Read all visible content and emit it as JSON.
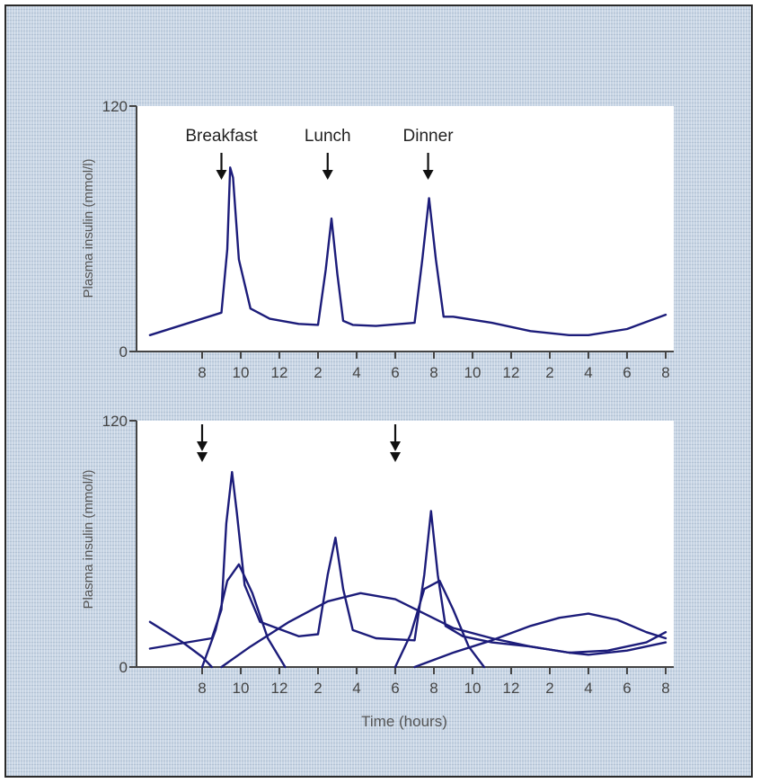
{
  "chart_data": [
    {
      "type": "line",
      "ylabel": "Plasma insulin (mmol/l)",
      "xlabel": "",
      "ylim": [
        0,
        120
      ],
      "yticks": [
        0,
        120
      ],
      "xlim": [
        5,
        32
      ],
      "x_tick_values": [
        8,
        10,
        12,
        14,
        16,
        18,
        20,
        22,
        24,
        26,
        28,
        30,
        32
      ],
      "x_tick_labels": [
        "8",
        "10",
        "12",
        "2",
        "4",
        "6",
        "8",
        "10",
        "12",
        "2",
        "4",
        "6",
        "8"
      ],
      "annotations": [
        {
          "label": "Breakfast",
          "x": 9.0,
          "arrows": 1
        },
        {
          "label": "Lunch",
          "x": 14.5,
          "arrows": 1
        },
        {
          "label": "Dinner",
          "x": 19.7,
          "arrows": 1
        }
      ],
      "series": [
        {
          "x": [
            5.3,
            9.0,
            9.3,
            9.45,
            9.6,
            9.9,
            10.5,
            11.5,
            13,
            14.0,
            14.4,
            14.7,
            15.0,
            15.3,
            15.8,
            17,
            19.0,
            19.4,
            19.75,
            20.1,
            20.5,
            21,
            23,
            25,
            27,
            28,
            30,
            32
          ],
          "y": [
            8,
            19,
            50,
            90,
            85,
            45,
            21,
            16,
            13.5,
            13,
            40,
            65,
            38,
            15,
            13,
            12.5,
            14,
            45,
            75,
            45,
            17,
            17,
            14,
            10,
            8,
            8,
            11,
            18
          ]
        }
      ]
    },
    {
      "type": "line",
      "xlabel": "Time (hours)",
      "ylabel": "Plasma insulin (mmol/l)",
      "ylim": [
        0,
        120
      ],
      "yticks": [
        0,
        120
      ],
      "xlim": [
        5,
        32
      ],
      "x_tick_values": [
        8,
        10,
        12,
        14,
        16,
        18,
        20,
        22,
        24,
        26,
        28,
        30,
        32
      ],
      "x_tick_labels": [
        "8",
        "10",
        "12",
        "2",
        "4",
        "6",
        "8",
        "10",
        "12",
        "2",
        "4",
        "6",
        "8"
      ],
      "annotations": [
        {
          "label": "",
          "x": 8.0,
          "arrows": 2
        },
        {
          "label": "",
          "x": 18.0,
          "arrows": 2
        }
      ],
      "series": [
        {
          "x": [
            5.3,
            8.5,
            9.0,
            9.25,
            9.55,
            9.8,
            10.2,
            11,
            13,
            14.0,
            14.5,
            14.9,
            15.3,
            15.8,
            17,
            19.0,
            19.5,
            19.85,
            20.2,
            20.6,
            21.5,
            23,
            25,
            27,
            28,
            30,
            32
          ],
          "y": [
            9,
            14,
            28,
            70,
            95,
            75,
            40,
            22,
            15,
            16,
            45,
            63,
            38,
            18,
            14,
            13,
            45,
            76,
            45,
            20,
            15,
            12,
            10,
            7,
            6,
            8,
            12
          ]
        },
        {
          "x": [
            5.3,
            7,
            8,
            8.5
          ],
          "y": [
            22,
            12,
            5,
            0
          ]
        },
        {
          "x": [
            8.0,
            8.7,
            9.3,
            9.9,
            10.6,
            11.4,
            12.3
          ],
          "y": [
            0,
            18,
            42,
            50,
            36,
            14,
            0
          ]
        },
        {
          "x": [
            9.0,
            10.5,
            12.5,
            14.5,
            16.2,
            18,
            19.5,
            21,
            23,
            25,
            27,
            29,
            31,
            32
          ],
          "y": [
            0,
            10,
            22,
            32,
            36,
            33,
            26,
            19,
            14,
            10,
            7,
            8,
            12,
            17
          ]
        },
        {
          "x": [
            18.0,
            18.8,
            19.5,
            20.3,
            21.0,
            21.8,
            22.6
          ],
          "y": [
            0,
            16,
            38,
            42,
            28,
            10,
            0
          ]
        },
        {
          "x": [
            19.0,
            21,
            23,
            25,
            26.5,
            28,
            29.5,
            31,
            32
          ],
          "y": [
            0,
            7,
            13,
            20,
            24,
            26,
            23,
            17,
            14
          ]
        }
      ]
    }
  ]
}
